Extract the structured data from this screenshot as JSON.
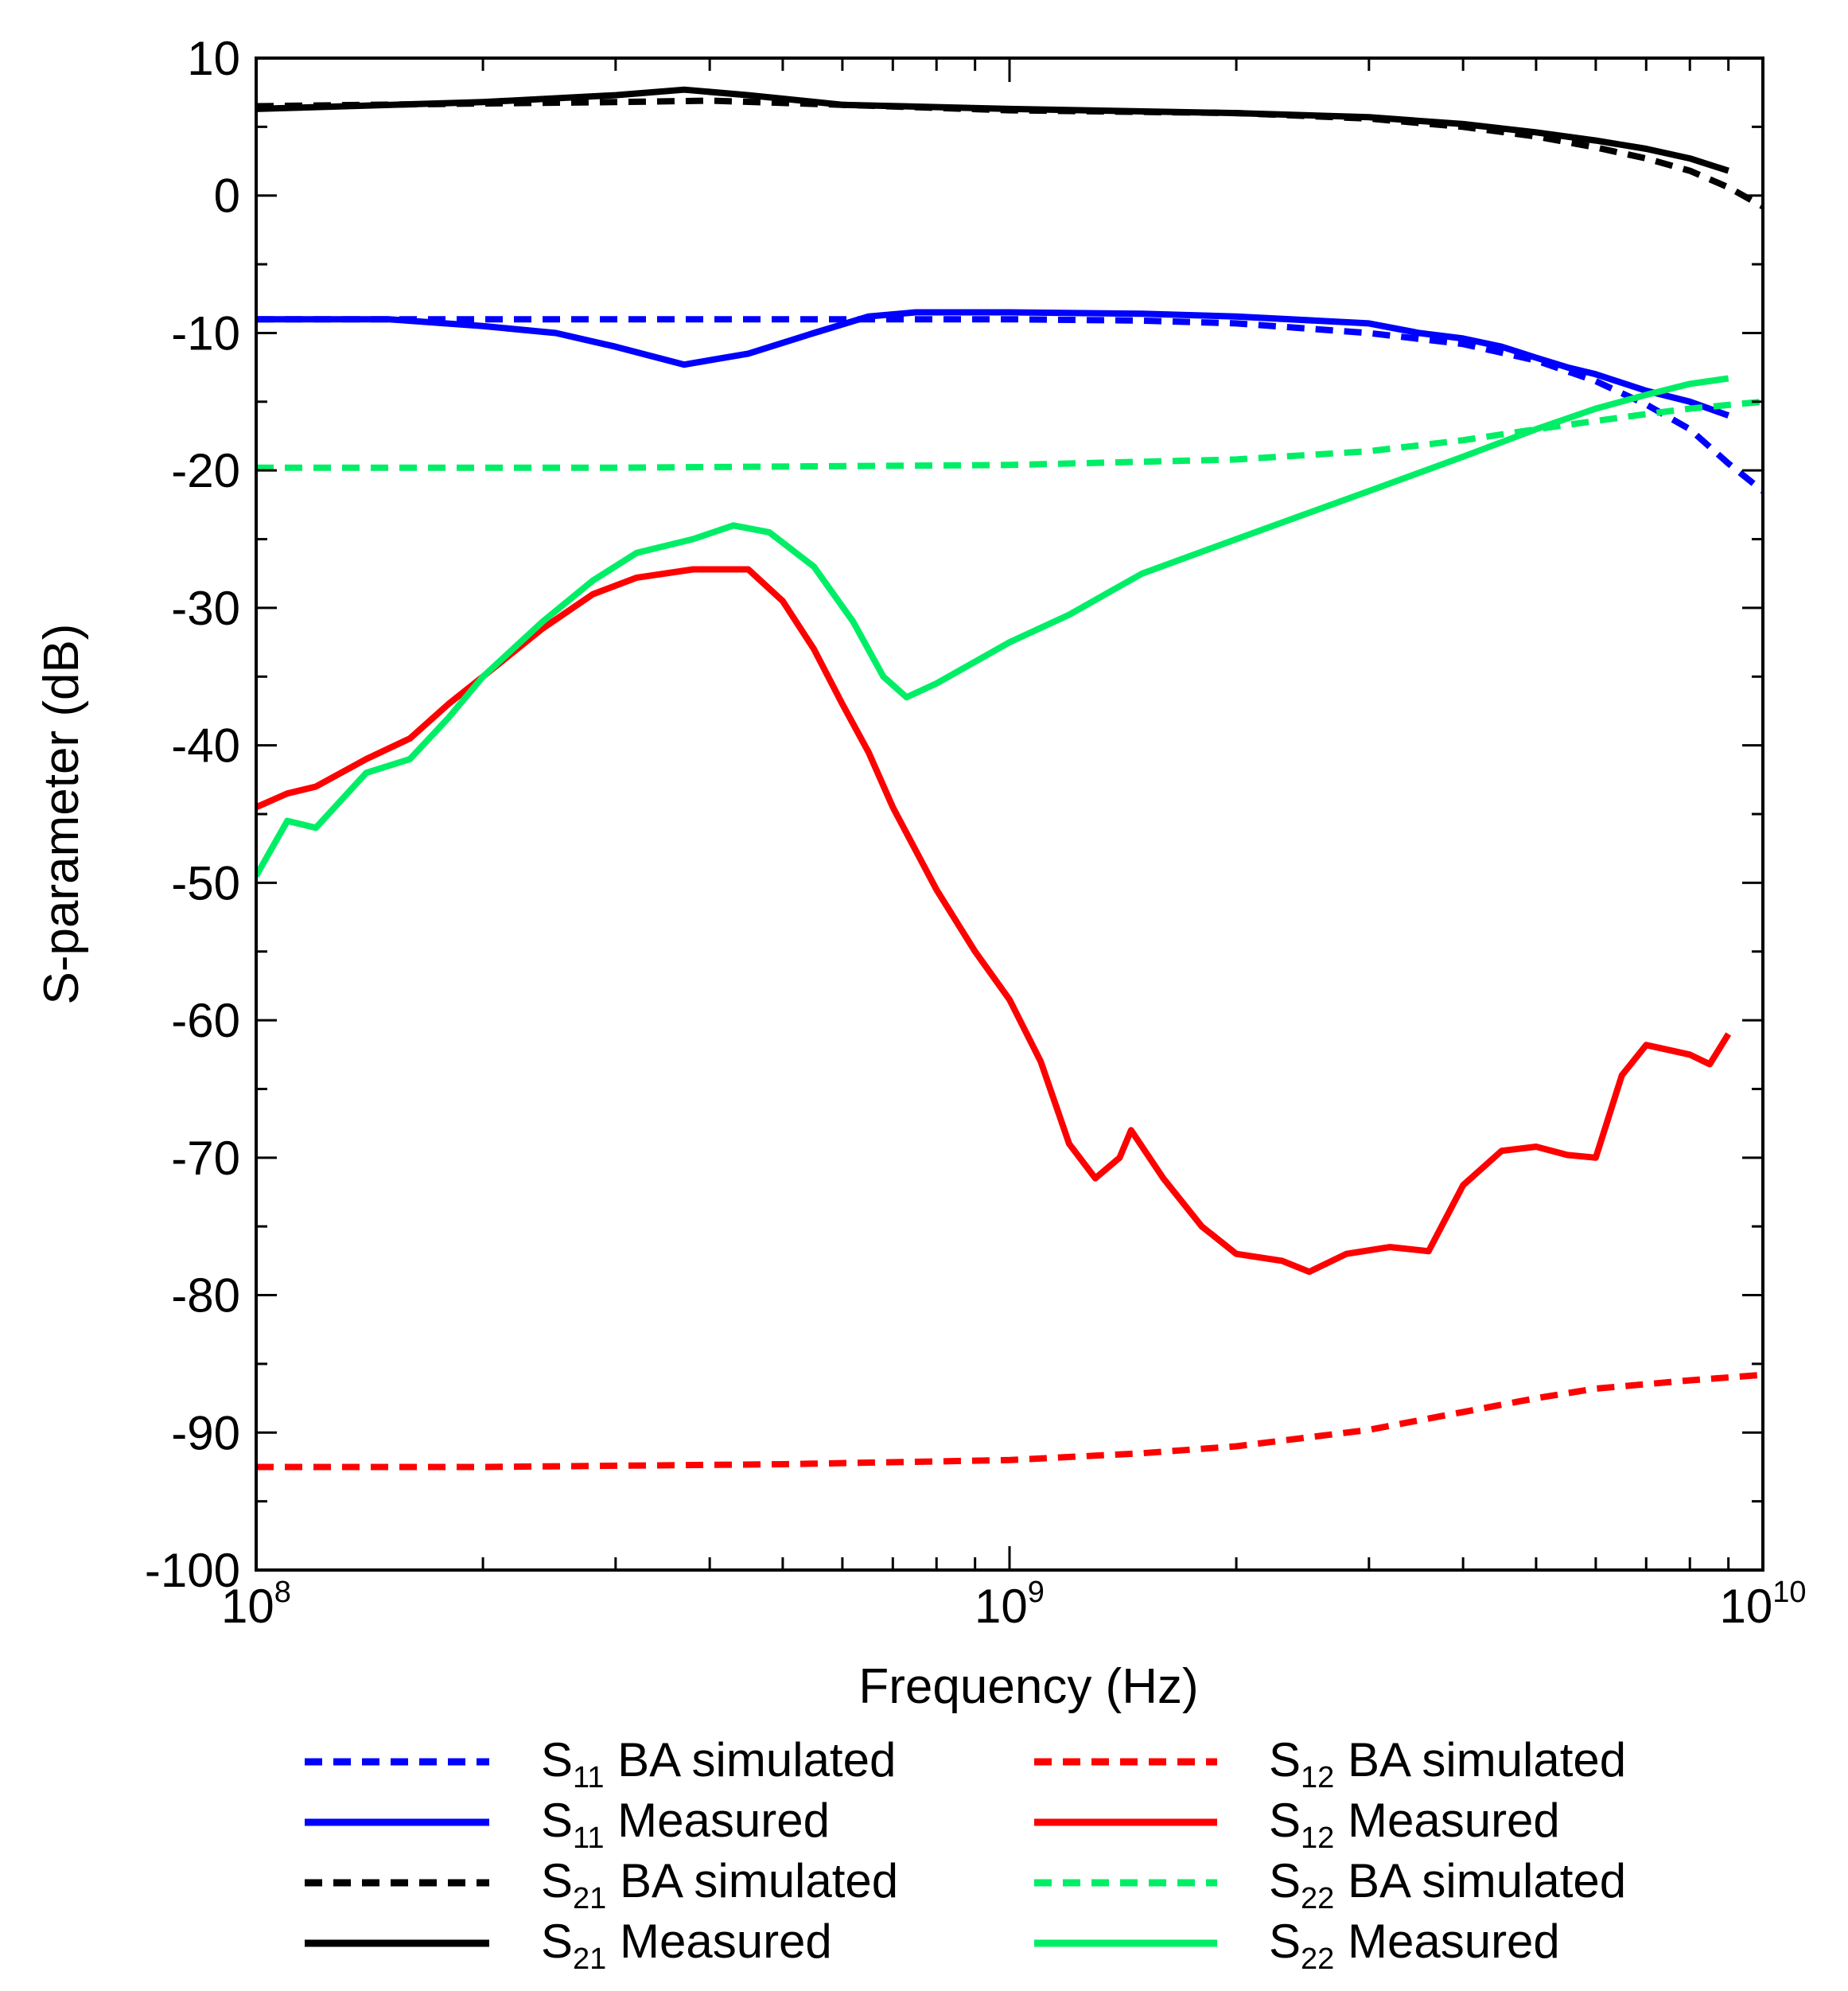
{
  "chart_data": {
    "type": "line",
    "title": "",
    "xlabel": "Frequency (Hz)",
    "ylabel": "S-parameter (dB)",
    "xscale": "log",
    "xlim": [
      100000000,
      10000000000
    ],
    "ylim": [
      -100,
      10
    ],
    "x_ticks": [
      {
        "base": "10",
        "exp": "8",
        "value": 100000000
      },
      {
        "base": "10",
        "exp": "9",
        "value": 1000000000
      },
      {
        "base": "10",
        "exp": "10",
        "value": 10000000000
      }
    ],
    "y_ticks": [
      "10",
      "0",
      "-10",
      "-20",
      "-30",
      "-40",
      "-50",
      "-60",
      "-70",
      "-80",
      "-90",
      "-100"
    ],
    "legend_position": "bottom",
    "series": [
      {
        "id": "s11-sim",
        "name": "S11 BA simulated",
        "label_main": "S",
        "label_sub": "11",
        "label_rest": " BA simulated",
        "color": "#0000ff",
        "dash": true,
        "points": [
          [
            100000000.0,
            -9.0
          ],
          [
            150000000.0,
            -9.0
          ],
          [
            200000000.0,
            -9.0
          ],
          [
            300000000.0,
            -9.0
          ],
          [
            500000000.0,
            -9.0
          ],
          [
            700000000.0,
            -9.0
          ],
          [
            1000000000.0,
            -9.0
          ],
          [
            1500000000.0,
            -9.1
          ],
          [
            2000000000.0,
            -9.3
          ],
          [
            3000000000.0,
            -10.0
          ],
          [
            4000000000.0,
            -10.8
          ],
          [
            5000000000.0,
            -12.0
          ],
          [
            6000000000.0,
            -13.5
          ],
          [
            7000000000.0,
            -15.2
          ],
          [
            8000000000.0,
            -17.0
          ],
          [
            9000000000.0,
            -19.5
          ],
          [
            10000000000.0,
            -21.5
          ]
        ]
      },
      {
        "id": "s11-meas",
        "name": "S11 Measured",
        "label_main": "S",
        "label_sub": "11",
        "label_rest": " Measured",
        "color": "#0000ff",
        "dash": false,
        "points": [
          [
            100000000.0,
            -9.0
          ],
          [
            150000000.0,
            -9.0
          ],
          [
            200000000.0,
            -9.5
          ],
          [
            250000000.0,
            -10.0
          ],
          [
            300000000.0,
            -11.0
          ],
          [
            370000000.0,
            -12.3
          ],
          [
            450000000.0,
            -11.5
          ],
          [
            550000000.0,
            -10.0
          ],
          [
            650000000.0,
            -8.8
          ],
          [
            750000000.0,
            -8.5
          ],
          [
            1000000000.0,
            -8.5
          ],
          [
            1500000000.0,
            -8.6
          ],
          [
            2000000000.0,
            -8.8
          ],
          [
            3000000000.0,
            -9.3
          ],
          [
            3500000000.0,
            -10.0
          ],
          [
            4000000000.0,
            -10.4
          ],
          [
            4500000000.0,
            -11.0
          ],
          [
            5000000000.0,
            -11.8
          ],
          [
            5500000000.0,
            -12.5
          ],
          [
            6000000000.0,
            -13.0
          ],
          [
            7000000000.0,
            -14.2
          ],
          [
            8000000000.0,
            -15.0
          ],
          [
            9000000000.0,
            -16.0
          ]
        ]
      },
      {
        "id": "s21-sim",
        "name": "S21 BA simulated",
        "label_main": "S",
        "label_sub": "21",
        "label_rest": " BA simulated",
        "color": "#000000",
        "dash": true,
        "points": [
          [
            100000000.0,
            6.5
          ],
          [
            200000000.0,
            6.7
          ],
          [
            300000000.0,
            6.8
          ],
          [
            400000000.0,
            6.9
          ],
          [
            600000000.0,
            6.6
          ],
          [
            1000000000.0,
            6.2
          ],
          [
            2000000000.0,
            6.0
          ],
          [
            3000000000.0,
            5.6
          ],
          [
            4000000000.0,
            5.0
          ],
          [
            5000000000.0,
            4.3
          ],
          [
            6000000000.0,
            3.5
          ],
          [
            7000000000.0,
            2.7
          ],
          [
            8000000000.0,
            1.8
          ],
          [
            9000000000.0,
            0.6
          ],
          [
            10000000000.0,
            -0.8
          ]
        ]
      },
      {
        "id": "s21-meas",
        "name": "S21 Measured",
        "label_main": "S",
        "label_sub": "21",
        "label_rest": " Measured",
        "color": "#000000",
        "dash": false,
        "points": [
          [
            100000000.0,
            6.3
          ],
          [
            200000000.0,
            6.8
          ],
          [
            300000000.0,
            7.3
          ],
          [
            370000000.0,
            7.7
          ],
          [
            450000000.0,
            7.3
          ],
          [
            600000000.0,
            6.6
          ],
          [
            1000000000.0,
            6.3
          ],
          [
            2000000000.0,
            6.0
          ],
          [
            3000000000.0,
            5.7
          ],
          [
            4000000000.0,
            5.2
          ],
          [
            5000000000.0,
            4.6
          ],
          [
            6000000000.0,
            4.0
          ],
          [
            7000000000.0,
            3.4
          ],
          [
            8000000000.0,
            2.7
          ],
          [
            9000000000.0,
            1.8
          ]
        ]
      },
      {
        "id": "s12-sim",
        "name": "S12 BA simulated",
        "label_main": "S",
        "label_sub": "12",
        "label_rest": " BA simulated",
        "color": "#ff0000",
        "dash": true,
        "points": [
          [
            100000000.0,
            -92.5
          ],
          [
            200000000.0,
            -92.5
          ],
          [
            500000000.0,
            -92.3
          ],
          [
            1000000000.0,
            -92.0
          ],
          [
            1500000000.0,
            -91.5
          ],
          [
            2000000000.0,
            -91.0
          ],
          [
            3000000000.0,
            -89.8
          ],
          [
            4000000000.0,
            -88.5
          ],
          [
            5000000000.0,
            -87.5
          ],
          [
            6000000000.0,
            -86.8
          ],
          [
            8000000000.0,
            -86.2
          ],
          [
            10000000000.0,
            -85.8
          ]
        ]
      },
      {
        "id": "s12-meas",
        "name": "S12 Measured",
        "label_main": "S",
        "label_sub": "12",
        "label_rest": " Measured",
        "color": "#ff0000",
        "dash": false,
        "points": [
          [
            100000000.0,
            -44.5
          ],
          [
            110000000.0,
            -43.5
          ],
          [
            120000000.0,
            -43.0
          ],
          [
            140000000.0,
            -41.0
          ],
          [
            160000000.0,
            -39.5
          ],
          [
            180000000.0,
            -37.0
          ],
          [
            200000000.0,
            -35.0
          ],
          [
            240000000.0,
            -31.5
          ],
          [
            280000000.0,
            -29.0
          ],
          [
            320000000.0,
            -27.8
          ],
          [
            380000000.0,
            -27.2
          ],
          [
            450000000.0,
            -27.2
          ],
          [
            500000000.0,
            -29.5
          ],
          [
            550000000.0,
            -33.0
          ],
          [
            600000000.0,
            -37.0
          ],
          [
            650000000.0,
            -40.5
          ],
          [
            700000000.0,
            -44.5
          ],
          [
            800000000.0,
            -50.5
          ],
          [
            900000000.0,
            -55.0
          ],
          [
            1000000000.0,
            -58.5
          ],
          [
            1100000000.0,
            -63.0
          ],
          [
            1200000000.0,
            -69.0
          ],
          [
            1300000000.0,
            -71.5
          ],
          [
            1400000000.0,
            -70.0
          ],
          [
            1450000000.0,
            -68.0
          ],
          [
            1600000000.0,
            -71.5
          ],
          [
            1800000000.0,
            -75.0
          ],
          [
            2000000000.0,
            -77.0
          ],
          [
            2300000000.0,
            -77.5
          ],
          [
            2500000000.0,
            -78.3
          ],
          [
            2800000000.0,
            -77.0
          ],
          [
            3200000000.0,
            -76.5
          ],
          [
            3600000000.0,
            -76.8
          ],
          [
            4000000000.0,
            -72.0
          ],
          [
            4500000000.0,
            -69.5
          ],
          [
            5000000000.0,
            -69.2
          ],
          [
            5500000000.0,
            -69.8
          ],
          [
            6000000000.0,
            -70.0
          ],
          [
            6500000000.0,
            -64.0
          ],
          [
            7000000000.0,
            -61.8
          ],
          [
            8000000000.0,
            -62.5
          ],
          [
            8500000000.0,
            -63.2
          ],
          [
            9000000000.0,
            -61.0
          ]
        ]
      },
      {
        "id": "s22-sim",
        "name": "S22 BA simulated",
        "label_main": "S",
        "label_sub": "22",
        "label_rest": " BA simulated",
        "color": "#00ee66",
        "dash": true,
        "points": [
          [
            100000000.0,
            -19.8
          ],
          [
            300000000.0,
            -19.8
          ],
          [
            1000000000.0,
            -19.6
          ],
          [
            2000000000.0,
            -19.2
          ],
          [
            3000000000.0,
            -18.6
          ],
          [
            4000000000.0,
            -17.8
          ],
          [
            5000000000.0,
            -17.0
          ],
          [
            6000000000.0,
            -16.4
          ],
          [
            7000000000.0,
            -15.9
          ],
          [
            8000000000.0,
            -15.5
          ],
          [
            10000000000.0,
            -15.0
          ]
        ]
      },
      {
        "id": "s22-meas",
        "name": "S22 Measured",
        "label_main": "S",
        "label_sub": "22",
        "label_rest": " Measured",
        "color": "#00ee66",
        "dash": false,
        "points": [
          [
            100000000.0,
            -49.5
          ],
          [
            110000000.0,
            -45.5
          ],
          [
            120000000.0,
            -46.0
          ],
          [
            140000000.0,
            -42.0
          ],
          [
            160000000.0,
            -41.0
          ],
          [
            180000000.0,
            -38.0
          ],
          [
            200000000.0,
            -35.0
          ],
          [
            240000000.0,
            -31.0
          ],
          [
            280000000.0,
            -28.0
          ],
          [
            320000000.0,
            -26.0
          ],
          [
            380000000.0,
            -25.0
          ],
          [
            430000000.0,
            -24.0
          ],
          [
            480000000.0,
            -24.5
          ],
          [
            550000000.0,
            -27.0
          ],
          [
            620000000.0,
            -31.0
          ],
          [
            680000000.0,
            -35.0
          ],
          [
            730000000.0,
            -36.5
          ],
          [
            800000000.0,
            -35.5
          ],
          [
            1000000000.0,
            -32.5
          ],
          [
            1200000000.0,
            -30.5
          ],
          [
            1500000000.0,
            -27.5
          ],
          [
            2000000000.0,
            -25.0
          ],
          [
            3000000000.0,
            -21.5
          ],
          [
            4000000000.0,
            -19.0
          ],
          [
            5000000000.0,
            -17.0
          ],
          [
            6000000000.0,
            -15.5
          ],
          [
            7000000000.0,
            -14.5
          ],
          [
            8000000000.0,
            -13.7
          ],
          [
            9000000000.0,
            -13.3
          ]
        ]
      }
    ]
  }
}
